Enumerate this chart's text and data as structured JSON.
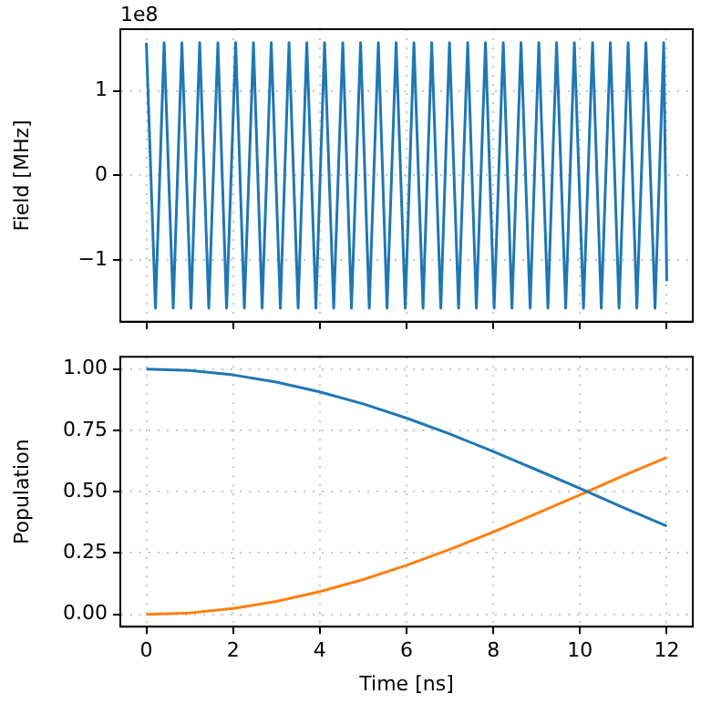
{
  "chart_data": [
    {
      "type": "line",
      "ylabel": "Field [MHz]",
      "annotations": [
        "1e8"
      ],
      "xlim": [
        -0.6,
        12.6
      ],
      "xticks": [
        0,
        2,
        4,
        6,
        8,
        10,
        12
      ],
      "ylim": [
        -1.73,
        1.73
      ],
      "yticks": [
        {
          "value": -1,
          "label": "−1"
        },
        0,
        1
      ],
      "grid": true,
      "line_style": "solid",
      "tick_labels": "y",
      "series": [
        {
          "color": "#1f77b4",
          "x": [
            0,
            0.21,
            0.41,
            0.62,
            0.82,
            1.03,
            1.23,
            1.44,
            1.65,
            1.85,
            2.06,
            2.26,
            2.47,
            2.67,
            2.88,
            3.09,
            3.29,
            3.5,
            3.7,
            3.91,
            4.11,
            4.32,
            4.53,
            4.73,
            4.94,
            5.14,
            5.35,
            5.55,
            5.76,
            5.97,
            6.17,
            6.38,
            6.58,
            6.79,
            6.99,
            7.2,
            7.41,
            7.61,
            7.82,
            8.02,
            8.23,
            8.43,
            8.64,
            8.85,
            9.05,
            9.26,
            9.46,
            9.67,
            9.87,
            10.08,
            10.29,
            10.49,
            10.7,
            10.9,
            11.11,
            11.31,
            11.52,
            11.73,
            11.93,
            12
          ],
          "values": [
            1.57,
            -1.57,
            1.57,
            -1.57,
            1.57,
            -1.57,
            1.57,
            -1.57,
            1.57,
            -1.57,
            1.57,
            -1.57,
            1.57,
            -1.57,
            1.57,
            -1.57,
            1.57,
            -1.57,
            1.57,
            -1.57,
            1.57,
            -1.57,
            1.57,
            -1.57,
            1.57,
            -1.57,
            1.57,
            -1.57,
            1.57,
            -1.57,
            1.57,
            -1.57,
            1.57,
            -1.57,
            1.57,
            -1.57,
            1.57,
            -1.57,
            1.57,
            -1.57,
            1.57,
            -1.57,
            1.57,
            -1.57,
            1.57,
            -1.57,
            1.57,
            -1.57,
            1.57,
            -1.57,
            1.57,
            -1.57,
            1.57,
            -1.57,
            1.57,
            -1.57,
            1.57,
            -1.57,
            1.57,
            -1.25
          ]
        }
      ]
    },
    {
      "type": "line",
      "xlabel": "Time [ns]",
      "ylabel": "Population",
      "xlim": [
        -0.6,
        12.6
      ],
      "xticks": [
        0,
        2,
        4,
        6,
        8,
        10,
        12
      ],
      "ylim": [
        -0.05,
        1.05
      ],
      "yticks": [
        {
          "value": 0,
          "label": "0.00"
        },
        {
          "value": 0.25,
          "label": "0.25"
        },
        {
          "value": 0.5,
          "label": "0.50"
        },
        {
          "value": 0.75,
          "label": "0.75"
        },
        {
          "value": 1,
          "label": "1.00"
        }
      ],
      "grid": true,
      "line_style": "solid",
      "x": [
        0,
        1,
        2,
        3,
        4,
        5,
        6,
        7,
        8,
        9,
        10,
        11,
        12
      ],
      "series": [
        {
          "color": "#1f77b4",
          "values": [
            1,
            0.994,
            0.976,
            0.947,
            0.907,
            0.858,
            0.8,
            0.735,
            0.664,
            0.589,
            0.513,
            0.435,
            0.36
          ]
        },
        {
          "color": "#ff7f0e",
          "values": [
            0,
            0.006,
            0.024,
            0.053,
            0.093,
            0.142,
            0.2,
            0.265,
            0.336,
            0.411,
            0.487,
            0.565,
            0.64
          ]
        }
      ]
    }
  ]
}
